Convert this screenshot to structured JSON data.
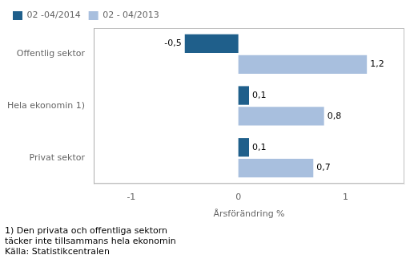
{
  "chart_data": {
    "type": "bar",
    "orientation": "horizontal",
    "categories": [
      "Offentlig sektor",
      "Hela ekonomin 1)",
      "Privat sektor"
    ],
    "series": [
      {
        "name": "02 -04/2014",
        "color": "#1f5f8b",
        "values": [
          -0.5,
          0.1,
          0.1
        ],
        "value_labels": [
          "-0,5",
          "0,1",
          "0,1"
        ]
      },
      {
        "name": "02 - 04/2013",
        "color": "#a8bfde",
        "values": [
          1.2,
          0.8,
          0.7
        ],
        "value_labels": [
          "1,2",
          "0,8",
          "0,7"
        ]
      }
    ],
    "xlabel": "Årsförändring %",
    "xlim": [
      -1.35,
      1.55
    ],
    "xticks": [
      -1,
      0,
      1
    ],
    "grid": false,
    "legend": "upper left",
    "data_labels": true,
    "annotations": [
      "1) Den privata och offentliga sektorn",
      "täcker inte tillsammans hela ekonomin",
      "Källa: Statistikcentralen"
    ]
  }
}
